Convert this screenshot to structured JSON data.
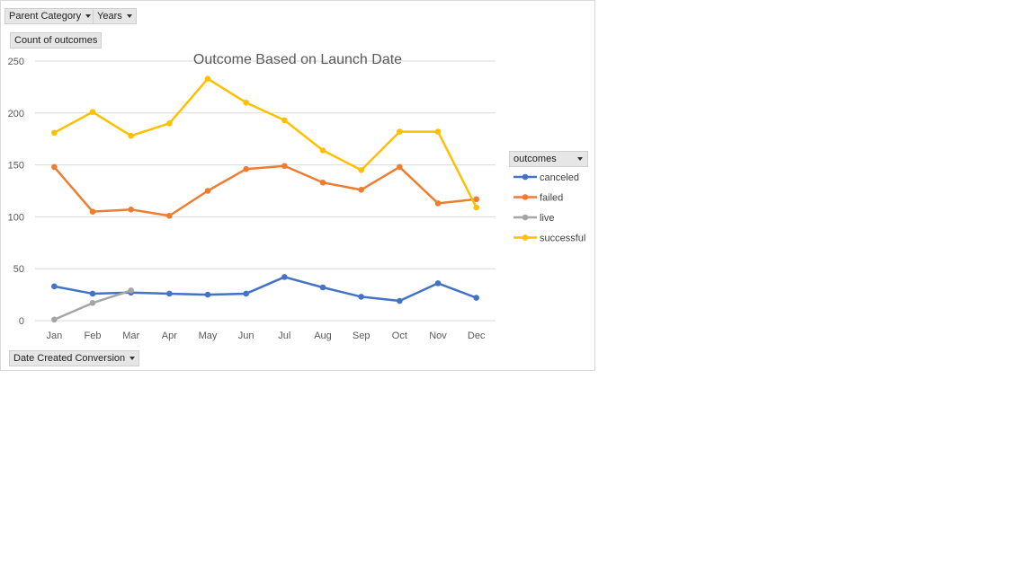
{
  "filters": {
    "parent_category": "Parent Category",
    "years": "Years",
    "value_field": "Count of outcomes",
    "axis_field": "Date Created Conversion",
    "legend_field": "outcomes"
  },
  "chart_data": {
    "type": "line",
    "title": "Outcome Based on Launch Date",
    "xlabel": "",
    "ylabel": "",
    "categories": [
      "Jan",
      "Feb",
      "Mar",
      "Apr",
      "May",
      "Jun",
      "Jul",
      "Aug",
      "Sep",
      "Oct",
      "Nov",
      "Dec"
    ],
    "ylim": [
      0,
      250
    ],
    "yticks": [
      0,
      50,
      100,
      150,
      200,
      250
    ],
    "grid": true,
    "legend_position": "right",
    "series": [
      {
        "name": "canceled",
        "color": "#4472C4",
        "values": [
          33,
          26,
          27,
          26,
          25,
          26,
          42,
          32,
          23,
          19,
          36,
          22
        ]
      },
      {
        "name": "failed",
        "color": "#ED7D31",
        "values": [
          148,
          105,
          107,
          101,
          125,
          146,
          149,
          133,
          126,
          148,
          113,
          117
        ]
      },
      {
        "name": "live",
        "color": "#A5A5A5",
        "values": [
          1,
          17,
          29,
          null,
          null,
          null,
          null,
          null,
          null,
          null,
          null,
          null
        ]
      },
      {
        "name": "successful",
        "color": "#FFC000",
        "values": [
          181,
          201,
          178,
          190,
          233,
          210,
          193,
          164,
          145,
          182,
          182,
          109
        ]
      }
    ]
  }
}
